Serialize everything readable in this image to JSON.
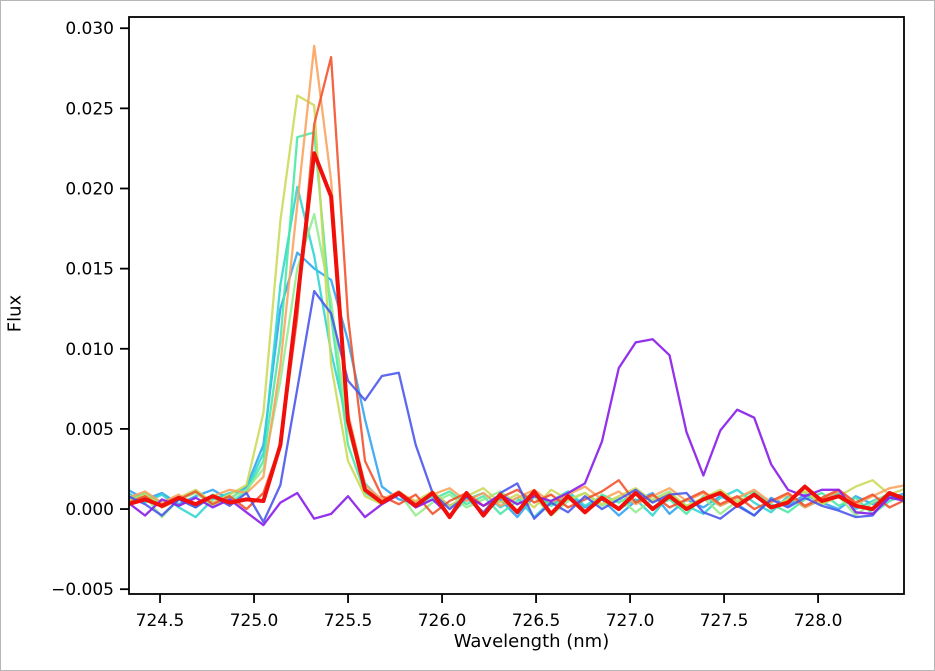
{
  "figure": {
    "background": "#ffffff",
    "spine_color": "#000000"
  },
  "chart_data": {
    "type": "line",
    "title": "",
    "xlabel": "Wavelength (nm)",
    "ylabel": "Flux",
    "grid": false,
    "legend": "none",
    "xlim": [
      724.335,
      728.457
    ],
    "ylim": [
      -0.0053,
      0.0307
    ],
    "x_ticks": [
      {
        "v": 724.5,
        "label": "724.5"
      },
      {
        "v": 725.0,
        "label": "725.0"
      },
      {
        "v": 725.5,
        "label": "725.5"
      },
      {
        "v": 726.0,
        "label": "726.0"
      },
      {
        "v": 726.5,
        "label": "726.5"
      },
      {
        "v": 727.0,
        "label": "727.0"
      },
      {
        "v": 727.5,
        "label": "727.5"
      },
      {
        "v": 728.0,
        "label": "728.0"
      }
    ],
    "y_ticks": [
      {
        "v": -0.005,
        "label": "−0.005"
      },
      {
        "v": 0.0,
        "label": "0.000"
      },
      {
        "v": 0.005,
        "label": "0.005"
      },
      {
        "v": 0.01,
        "label": "0.010"
      },
      {
        "v": 0.015,
        "label": "0.015"
      },
      {
        "v": 0.02,
        "label": "0.020"
      },
      {
        "v": 0.025,
        "label": "0.025"
      },
      {
        "v": 0.03,
        "label": "0.030"
      }
    ],
    "x": [
      724.33,
      724.42,
      724.51,
      724.6,
      724.69,
      724.78,
      724.87,
      724.96,
      725.05,
      725.14,
      725.23,
      725.32,
      725.41,
      725.5,
      725.59,
      725.68,
      725.77,
      725.86,
      725.95,
      726.04,
      726.13,
      726.22,
      726.31,
      726.4,
      726.49,
      726.58,
      726.67,
      726.76,
      726.85,
      726.94,
      727.03,
      727.12,
      727.21,
      727.3,
      727.39,
      727.48,
      727.57,
      727.66,
      727.75,
      727.84,
      727.93,
      728.02,
      728.11,
      728.2,
      728.29,
      728.38,
      728.47
    ],
    "series": [
      {
        "name": "sky-blue",
        "color": "#2ea3f2",
        "width": 2.3,
        "opacity": 0.88,
        "values": [
          0.0012,
          0.0006,
          0.001,
          0.0003,
          0.0008,
          0.0012,
          0.0006,
          0.0014,
          0.004,
          0.0125,
          0.016,
          0.015,
          0.0143,
          0.0105,
          0.0056,
          0.0014,
          0.0006,
          0.0004,
          0.001,
          0.0002,
          0.0007,
          -0.0003,
          0.0006,
          -0.0005,
          0.0008,
          0.0003,
          0.0009,
          0.0001,
          0.0006,
          -0.0004,
          0.0005,
          0.001,
          -0.0003,
          0.0006,
          0.0001,
          0.0008,
          0.0003,
          -0.0004,
          0.0007,
          0.0002,
          0.0009,
          0.0004,
          0.0,
          0.0008,
          0.0003,
          0.0007,
          0.001
        ]
      },
      {
        "name": "cyan",
        "color": "#2bd5d2",
        "width": 2.3,
        "opacity": 0.88,
        "values": [
          0.001,
          0.0004,
          0.0009,
          0.0001,
          -0.0005,
          0.0006,
          0.001,
          0.0012,
          0.0035,
          0.014,
          0.0201,
          0.0158,
          0.0098,
          0.0052,
          0.0016,
          0.0005,
          0.0011,
          0.0003,
          0.0008,
          -0.0004,
          0.0006,
          0.001,
          0.0001,
          0.0007,
          -0.0005,
          0.0005,
          0.0011,
          0.0002,
          0.0008,
          0.0,
          0.0006,
          -0.0004,
          0.0009,
          0.0002,
          -0.0003,
          0.0007,
          0.0012,
          0.0004,
          -0.0002,
          0.0008,
          0.0001,
          0.0006,
          0.001,
          0.0,
          0.0005,
          0.0009,
          0.0006
        ]
      },
      {
        "name": "spring-green",
        "color": "#47e8a4",
        "width": 2.3,
        "opacity": 0.88,
        "values": [
          0.0006,
          0.001,
          0.0003,
          0.0008,
          0.0001,
          0.0009,
          0.0004,
          0.0011,
          0.003,
          0.0105,
          0.0232,
          0.0235,
          0.012,
          0.004,
          0.001,
          0.0004,
          0.0009,
          0.0002,
          0.0006,
          0.0011,
          0.0003,
          0.0008,
          -0.0003,
          0.0005,
          0.001,
          0.0002,
          0.0007,
          -0.0002,
          0.0009,
          0.0004,
          0.001,
          0.0001,
          0.0006,
          -0.0003,
          0.0008,
          0.0002,
          0.0007,
          0.0011,
          0.0003,
          -0.0002,
          0.0006,
          0.001,
          0.0002,
          0.0007,
          -0.0003,
          0.0005,
          0.0009
        ]
      },
      {
        "name": "light-green",
        "color": "#92ec8c",
        "width": 2.3,
        "opacity": 0.88,
        "values": [
          0.0003,
          0.0008,
          -0.0005,
          0.0006,
          0.001,
          0.0002,
          0.0007,
          0.0012,
          0.0025,
          0.008,
          0.015,
          0.0184,
          0.013,
          0.005,
          0.0012,
          0.0005,
          0.001,
          -0.0004,
          0.0004,
          0.0009,
          0.0001,
          0.0006,
          0.0011,
          0.0003,
          0.0008,
          -0.0004,
          0.0005,
          0.001,
          0.0002,
          0.0007,
          -0.0002,
          0.0006,
          0.0011,
          0.0001,
          0.0007,
          -0.0003,
          0.0005,
          0.0009,
          0.0,
          0.0006,
          0.0011,
          0.0003,
          0.0008,
          -0.0004,
          0.0004,
          0.001,
          0.0005
        ]
      },
      {
        "name": "yellow-green",
        "color": "#cbd957",
        "width": 2.3,
        "opacity": 0.88,
        "values": [
          0.0005,
          0.0009,
          0.0002,
          0.0007,
          0.0012,
          0.0004,
          0.0009,
          0.0015,
          0.006,
          0.018,
          0.0258,
          0.0252,
          0.009,
          0.003,
          0.0008,
          0.0003,
          0.001,
          0.0005,
          0.0011,
          0.0002,
          0.0008,
          0.0013,
          0.0004,
          0.0009,
          0.0001,
          0.0012,
          0.0006,
          0.001,
          0.0003,
          0.0008,
          0.0013,
          0.0005,
          0.001,
          0.0002,
          0.0007,
          0.0012,
          0.0004,
          0.0009,
          0.0001,
          0.0006,
          0.0011,
          0.0003,
          0.0008,
          0.0014,
          0.0018,
          0.0009,
          0.0013
        ]
      },
      {
        "name": "light-orange",
        "color": "#fba25c",
        "width": 2.3,
        "opacity": 0.88,
        "values": [
          0.0007,
          0.0011,
          0.0004,
          0.0009,
          0.0002,
          0.0008,
          0.0012,
          0.001,
          0.002,
          0.009,
          0.019,
          0.0289,
          0.0205,
          0.006,
          0.0015,
          0.0006,
          0.0011,
          0.0004,
          0.0009,
          0.0013,
          0.0005,
          0.001,
          0.0002,
          0.0007,
          0.0012,
          0.0004,
          0.0009,
          0.0014,
          0.0006,
          0.0011,
          0.0003,
          0.0008,
          0.0013,
          0.0005,
          0.001,
          0.0002,
          0.0007,
          0.0012,
          0.0004,
          0.0009,
          0.0001,
          0.0006,
          0.0011,
          0.0003,
          0.0008,
          0.0013,
          0.0015
        ]
      },
      {
        "name": "orange-red",
        "color": "#f24e28",
        "width": 2.3,
        "opacity": 0.88,
        "values": [
          0.0004,
          0.0008,
          0.0001,
          0.0006,
          0.0011,
          0.0003,
          0.0008,
          0.0,
          0.001,
          0.004,
          0.012,
          0.024,
          0.0282,
          0.012,
          0.003,
          0.0008,
          0.0003,
          0.0009,
          -0.0003,
          0.0005,
          0.001,
          0.0002,
          0.0007,
          0.0012,
          0.0004,
          0.0009,
          0.0001,
          0.0006,
          0.0011,
          0.0018,
          0.0004,
          0.0009,
          0.0001,
          0.0006,
          0.0011,
          0.0003,
          0.0008,
          0.0,
          0.0005,
          0.001,
          0.0002,
          0.0007,
          0.0012,
          0.0004,
          0.0009,
          0.0001,
          0.0006
        ]
      },
      {
        "name": "royal-blue",
        "color": "#4753ec",
        "width": 2.3,
        "opacity": 0.88,
        "values": [
          0.0008,
          0.0003,
          -0.0004,
          0.0006,
          0.0001,
          0.0008,
          0.0002,
          0.001,
          -0.0008,
          0.0015,
          0.0075,
          0.0136,
          0.0122,
          0.008,
          0.0068,
          0.0083,
          0.0085,
          0.004,
          0.001,
          0.0,
          0.0008,
          -0.0002,
          0.001,
          0.0016,
          -0.0006,
          0.0004,
          -0.0002,
          0.0008,
          0.0,
          0.0006,
          0.0012,
          0.0004,
          0.0009,
          0.001,
          -0.0002,
          -0.0006,
          0.0002,
          -0.0004,
          0.0006,
          0.0001,
          0.0007,
          0.0002,
          -0.0001,
          -0.0005,
          -0.0004,
          0.0009,
          0.0004
        ]
      },
      {
        "name": "purple",
        "color": "#8b1fe8",
        "width": 2.3,
        "opacity": 0.92,
        "values": [
          0.0004,
          -0.0004,
          0.0006,
          0.0002,
          0.0007,
          0.0001,
          0.0006,
          -0.0002,
          -0.001,
          0.0004,
          0.001,
          -0.0006,
          -0.0003,
          0.0008,
          -0.0005,
          0.0003,
          0.0009,
          0.0001,
          0.0006,
          -0.0004,
          0.0008,
          0.0002,
          0.0009,
          0.0003,
          0.0008,
          0.0005,
          0.001,
          0.0016,
          0.0042,
          0.0088,
          0.0104,
          0.0106,
          0.0096,
          0.0048,
          0.0021,
          0.0049,
          0.0062,
          0.0057,
          0.0028,
          0.0012,
          0.0008,
          0.0012,
          0.0012,
          -0.0002,
          -0.0003,
          0.0007,
          0.0005
        ]
      },
      {
        "name": "red-bold",
        "color": "#f00f0a",
        "width": 4.0,
        "opacity": 1.0,
        "values": [
          0.0003,
          0.0006,
          0.0002,
          0.0007,
          0.0003,
          0.0008,
          0.0004,
          0.0006,
          0.0005,
          0.004,
          0.013,
          0.0222,
          0.0195,
          0.0055,
          0.0012,
          0.0004,
          0.001,
          0.0002,
          0.001,
          -0.0005,
          0.001,
          -0.0004,
          0.0009,
          -0.0002,
          0.0011,
          -0.0003,
          0.0008,
          -0.0002,
          0.0007,
          0.0,
          0.001,
          0.0,
          0.0008,
          0.0,
          0.0006,
          0.001,
          0.0002,
          0.0009,
          0.0001,
          0.0004,
          0.0014,
          0.0005,
          0.0008,
          0.0002,
          0.0,
          0.001,
          0.0006
        ]
      }
    ]
  }
}
